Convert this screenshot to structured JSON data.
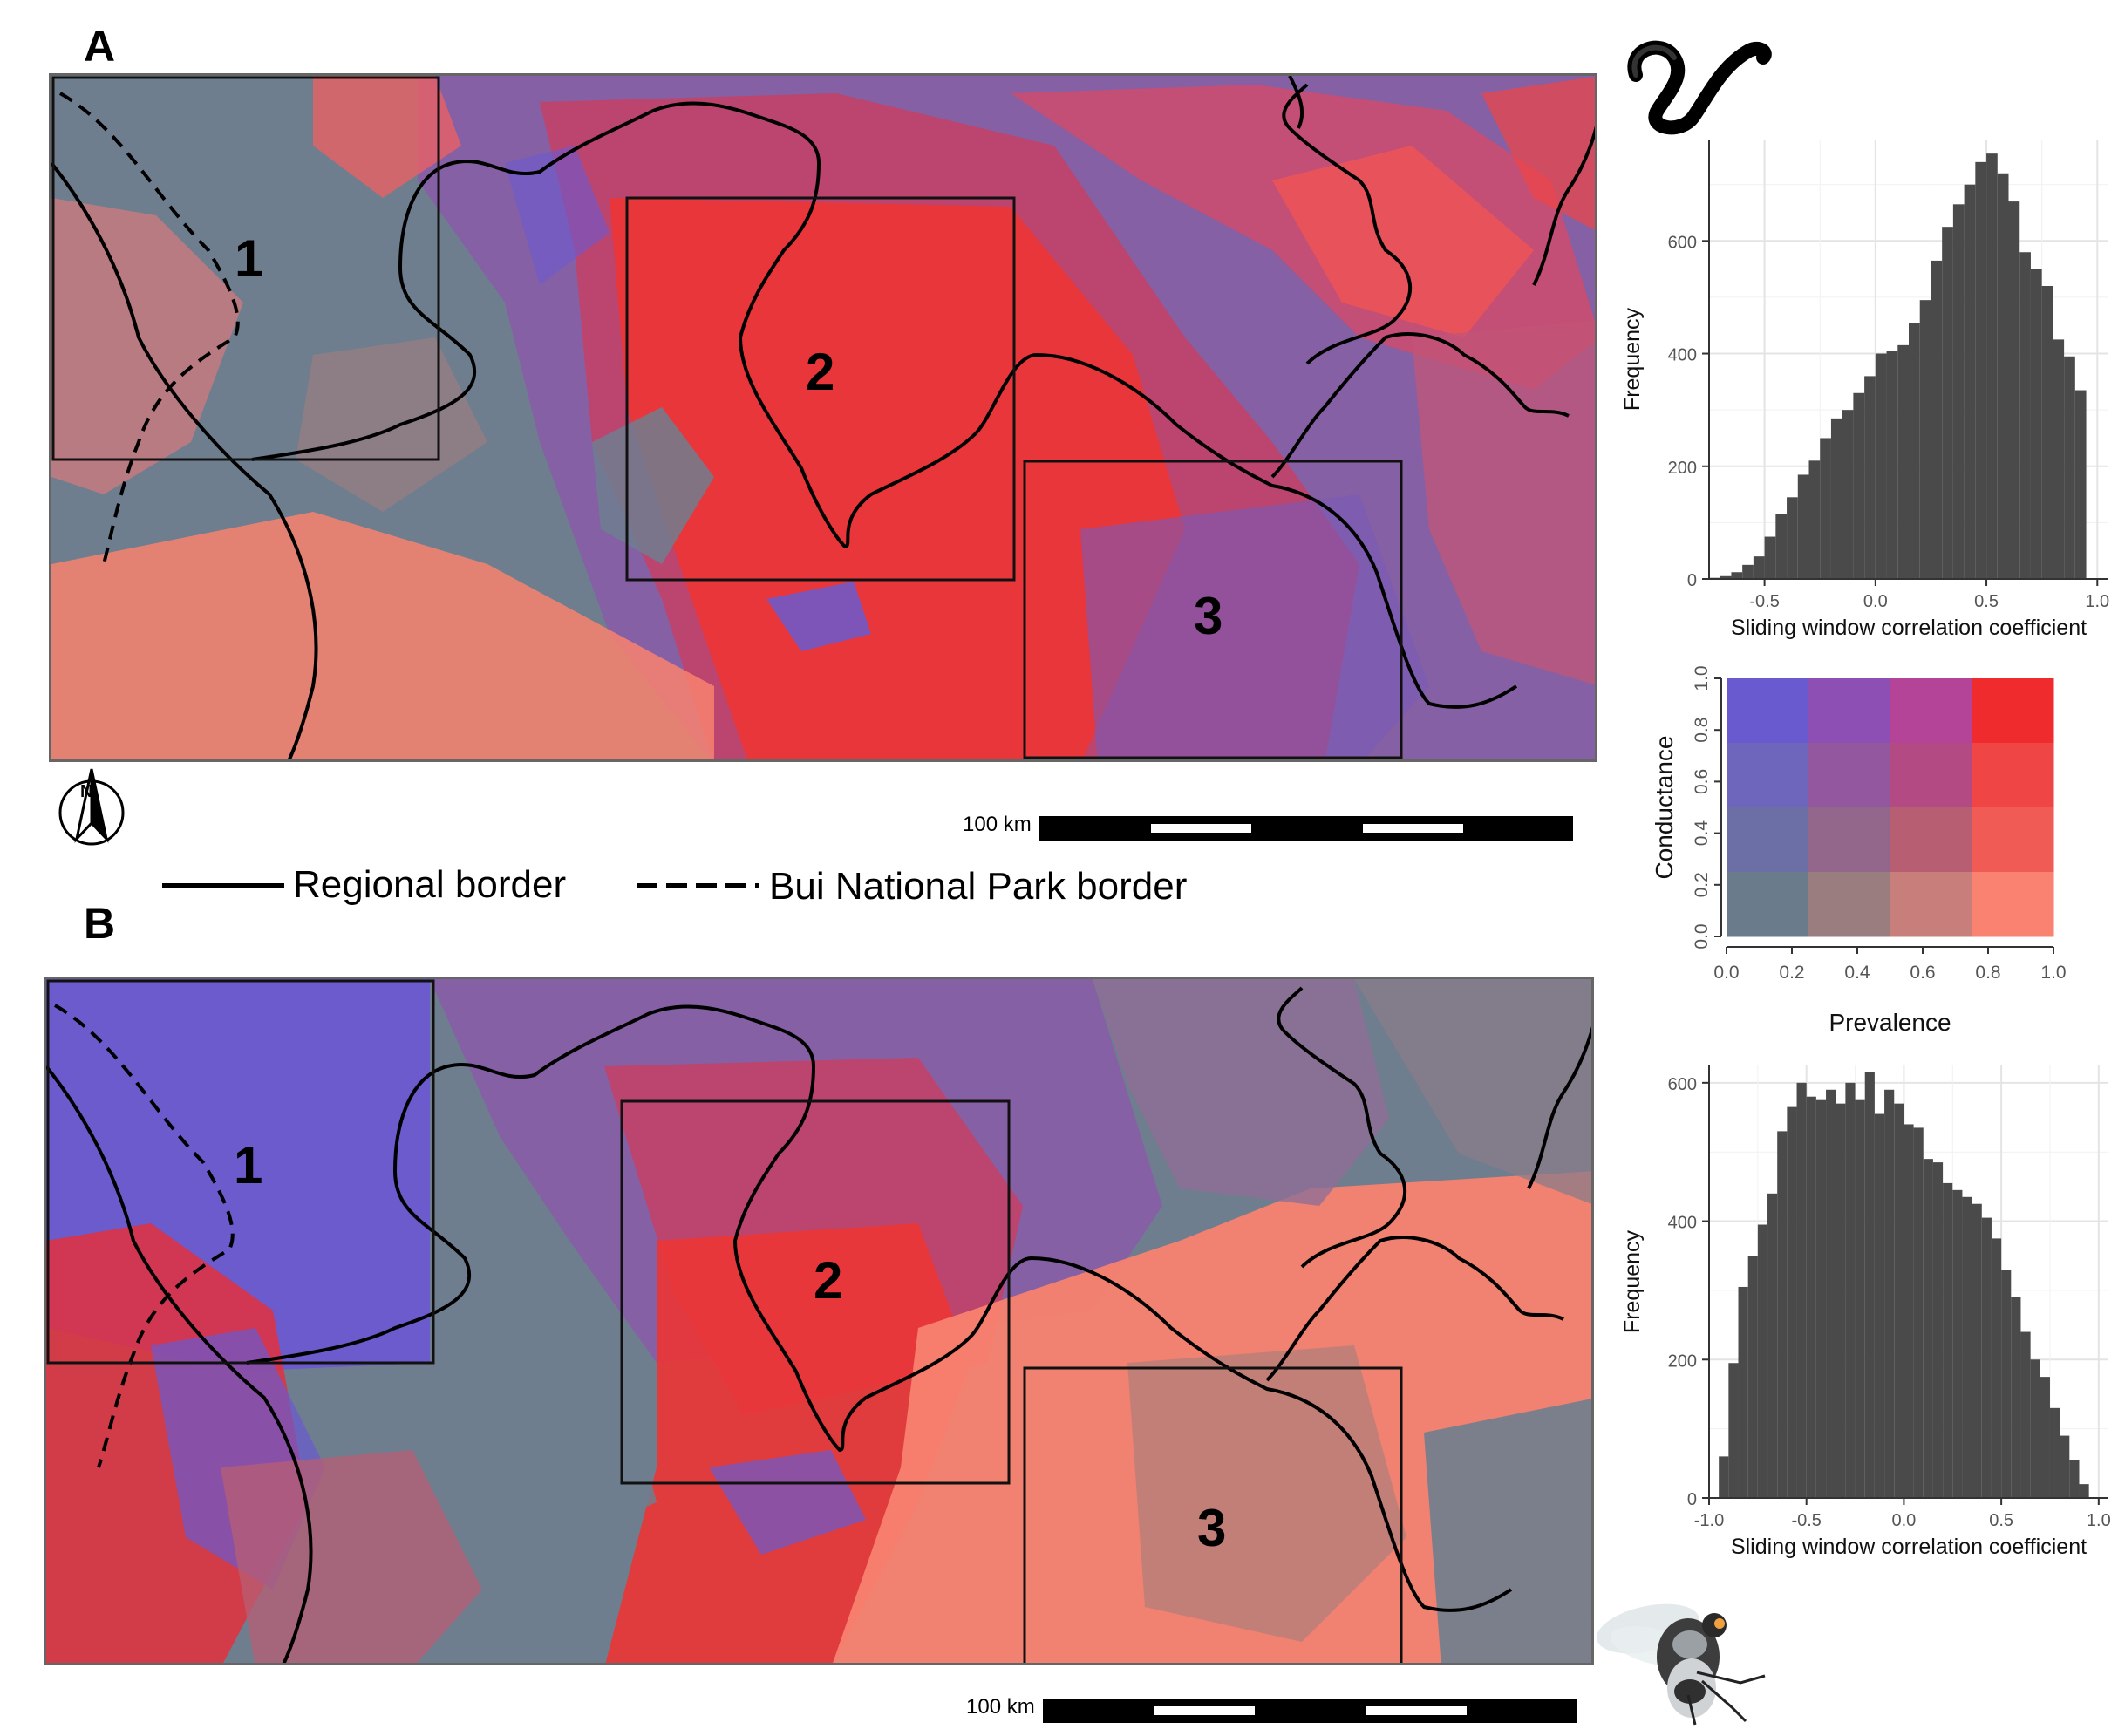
{
  "panels": [
    {
      "letter": "A",
      "regions": [
        "1",
        "2",
        "3"
      ],
      "scale_label": "100 km",
      "organism_icon": "nematode-worm-icon"
    },
    {
      "letter": "B",
      "regions": [
        "1",
        "2",
        "3"
      ],
      "scale_label": "100 km",
      "organism_icon": "blackfly-icon"
    }
  ],
  "north_arrow_icon": "north-arrow-icon",
  "line_legend": {
    "solid_label": "Regional border",
    "dashed_label": "Bui National Park border"
  },
  "bivariate_legend": {
    "ylabel": "Conductance",
    "xlabel": "Prevalence",
    "ticks": [
      "0.0",
      "0.2",
      "0.4",
      "0.6",
      "0.8",
      "1.0"
    ],
    "grid_colors": [
      [
        "#6a5ad0",
        "#8e4fb4",
        "#b34497",
        "#ef2b2e"
      ],
      [
        "#6e66bc",
        "#92579e",
        "#b34a84",
        "#ef4545"
      ],
      [
        "#6c6fa6",
        "#93668c",
        "#b85e73",
        "#f15b55"
      ],
      [
        "#6a7b8b",
        "#9a7e7f",
        "#c87f7c",
        "#f98271"
      ]
    ]
  },
  "chart_data": [
    {
      "type": "bar",
      "title": "",
      "xlabel": "Sliding window correlation coefficient",
      "ylabel": "Frequency",
      "xlim": [
        -0.75,
        1.05
      ],
      "ylim": [
        0,
        780
      ],
      "x_ticks": [
        "-0.5",
        "0.0",
        "0.5",
        "1.0"
      ],
      "y_ticks": [
        "0",
        "200",
        "400",
        "600"
      ],
      "bin_width": 0.05,
      "bin_starts": [
        -0.75,
        -0.7,
        -0.65,
        -0.6,
        -0.55,
        -0.5,
        -0.45,
        -0.4,
        -0.35,
        -0.3,
        -0.25,
        -0.2,
        -0.15,
        -0.1,
        -0.05,
        0.0,
        0.05,
        0.1,
        0.15,
        0.2,
        0.25,
        0.3,
        0.35,
        0.4,
        0.45,
        0.5,
        0.55,
        0.6,
        0.65,
        0.7,
        0.75,
        0.8,
        0.85,
        0.9,
        0.95
      ],
      "values": [
        2,
        5,
        12,
        25,
        40,
        75,
        115,
        145,
        185,
        210,
        250,
        285,
        300,
        330,
        360,
        400,
        405,
        415,
        455,
        495,
        565,
        625,
        665,
        700,
        740,
        755,
        720,
        670,
        580,
        550,
        520,
        425,
        395,
        335,
        0
      ]
    },
    {
      "type": "bar",
      "title": "",
      "xlabel": "Sliding window correlation coefficient",
      "ylabel": "Frequency",
      "xlim": [
        -1.0,
        1.05
      ],
      "ylim": [
        0,
        625
      ],
      "x_ticks": [
        "-1.0",
        "-0.5",
        "0.0",
        "0.5",
        "1.0"
      ],
      "y_ticks": [
        "0",
        "200",
        "400",
        "600"
      ],
      "bin_width": 0.05,
      "bin_starts": [
        -0.95,
        -0.9,
        -0.85,
        -0.8,
        -0.75,
        -0.7,
        -0.65,
        -0.6,
        -0.55,
        -0.5,
        -0.45,
        -0.4,
        -0.35,
        -0.3,
        -0.25,
        -0.2,
        -0.15,
        -0.1,
        -0.05,
        0.0,
        0.05,
        0.1,
        0.15,
        0.2,
        0.25,
        0.3,
        0.35,
        0.4,
        0.45,
        0.5,
        0.55,
        0.6,
        0.65,
        0.7,
        0.75,
        0.8,
        0.85,
        0.9
      ],
      "values": [
        60,
        195,
        305,
        350,
        395,
        440,
        530,
        565,
        600,
        580,
        575,
        590,
        570,
        600,
        575,
        615,
        555,
        590,
        570,
        540,
        535,
        490,
        485,
        455,
        445,
        435,
        425,
        405,
        375,
        330,
        290,
        240,
        200,
        175,
        130,
        90,
        55,
        20
      ]
    }
  ]
}
